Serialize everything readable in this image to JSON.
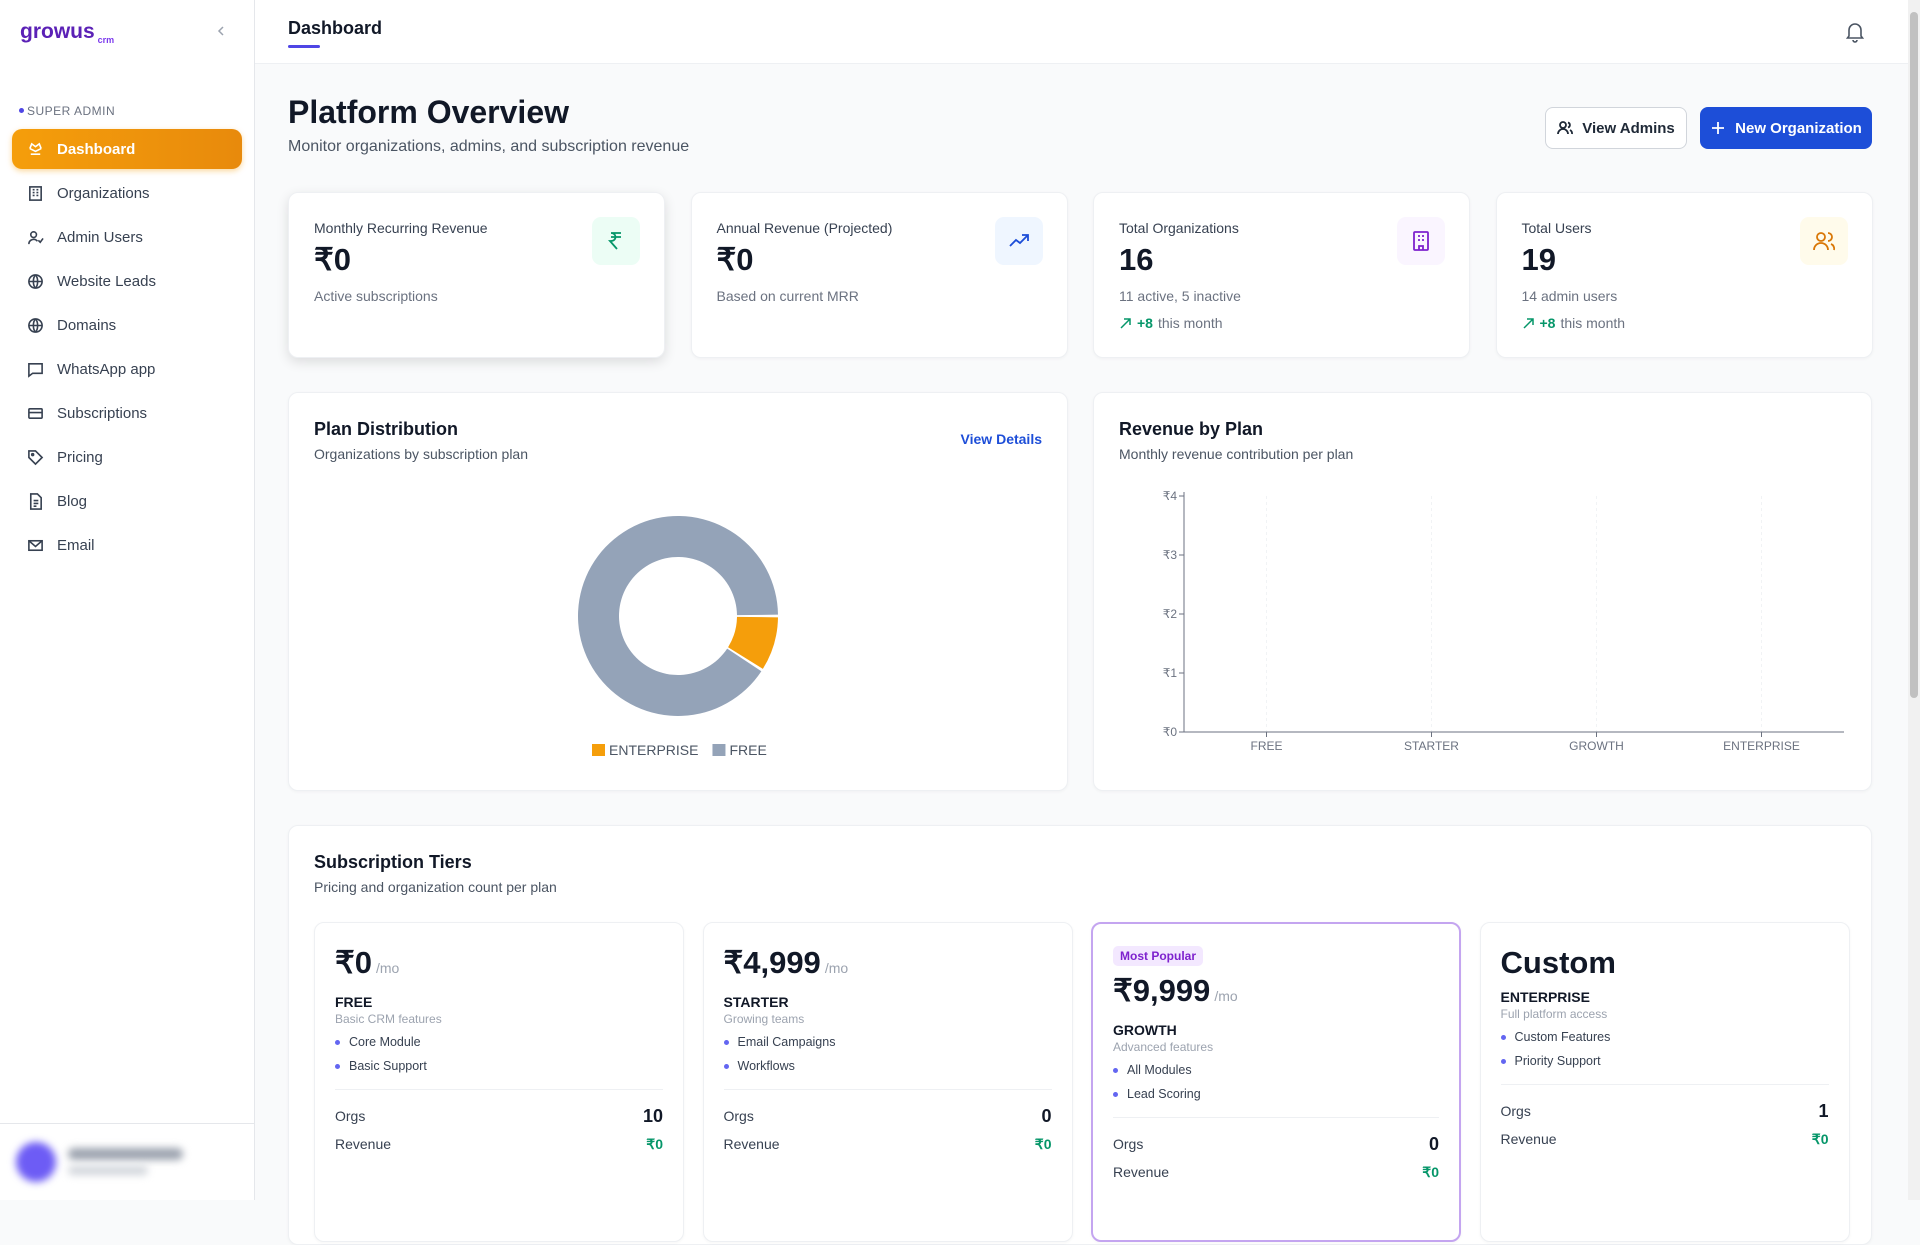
{
  "sidebar": {
    "logo": "growus",
    "logo_sub": "crm",
    "section": "SUPER ADMIN",
    "nav": [
      "Dashboard",
      "Organizations",
      "Admin Users",
      "Website Leads",
      "Domains",
      "WhatsApp app",
      "Subscriptions",
      "Pricing",
      "Blog",
      "Email"
    ]
  },
  "header": {
    "title": "Dashboard"
  },
  "page": {
    "title": "Platform Overview",
    "subtitle": "Monitor organizations, admins, and subscription revenue",
    "buttons": [
      "View Admins",
      "New Organization"
    ]
  },
  "stats": [
    {
      "label": "Monthly Recurring Revenue",
      "value": "₹0",
      "note": "Active subscriptions"
    },
    {
      "label": "Annual Revenue (Projected)",
      "value": "₹0",
      "note": "Based on current MRR"
    },
    {
      "label": "Total Organizations",
      "value": 16,
      "note": "11 active, 5 inactive",
      "trend": "+8",
      "trend_note": "this month"
    },
    {
      "label": "Total Users",
      "value": 19,
      "note": "14 admin users",
      "trend": "+8",
      "trend_note": "this month"
    }
  ],
  "chart_data": [
    {
      "type": "donut",
      "title": "Plan Distribution",
      "subtitle": "Organizations by subscription plan",
      "link": "View Details",
      "categories": [
        "ENTERPRISE",
        "FREE"
      ],
      "values": [
        1,
        10
      ],
      "colors": [
        "#f59e0b",
        "#94a3b8"
      ]
    },
    {
      "type": "bar",
      "title": "Revenue by Plan",
      "subtitle": "Monthly revenue contribution per plan",
      "categories": [
        "FREE",
        "STARTER",
        "GROWTH",
        "ENTERPRISE"
      ],
      "values": [
        0,
        0,
        0,
        0
      ],
      "color": "#4f46e5",
      "ylim": [
        0,
        4
      ],
      "yticks": [
        {
          "value": 0,
          "label": "₹0"
        },
        {
          "value": 1,
          "label": "₹1"
        },
        {
          "value": 2,
          "label": "₹2"
        },
        {
          "value": 3,
          "label": "₹3"
        },
        {
          "value": 4,
          "label": "₹4"
        }
      ]
    }
  ],
  "tiers": {
    "title": "Subscription Tiers",
    "subtitle": "Pricing and organization count per plan",
    "cards": [
      {
        "price": "₹0",
        "period": "/mo",
        "name": "FREE",
        "desc": "Basic CRM features",
        "features": [
          "Core Module",
          "Basic Support"
        ],
        "orgs_label": "Orgs",
        "orgs": 10,
        "revenue_label": "Revenue",
        "revenue": "₹0"
      },
      {
        "price": "₹4,999",
        "period": "/mo",
        "name": "STARTER",
        "desc": "Growing teams",
        "features": [
          "Email Campaigns",
          "Workflows"
        ],
        "orgs_label": "Orgs",
        "orgs": 0,
        "revenue_label": "Revenue",
        "revenue": "₹0"
      },
      {
        "badge": "Most Popular",
        "price": "₹9,999",
        "period": "/mo",
        "name": "GROWTH",
        "desc": "Advanced features",
        "features": [
          "All Modules",
          "Lead Scoring"
        ],
        "orgs_label": "Orgs",
        "orgs": 0,
        "revenue_label": "Revenue",
        "revenue": "₹0"
      },
      {
        "price": "Custom",
        "name": "ENTERPRISE",
        "desc": "Full platform access",
        "features": [
          "Custom Features",
          "Priority Support"
        ],
        "orgs_label": "Orgs",
        "orgs": 1,
        "revenue_label": "Revenue",
        "revenue": "₹0"
      }
    ]
  }
}
